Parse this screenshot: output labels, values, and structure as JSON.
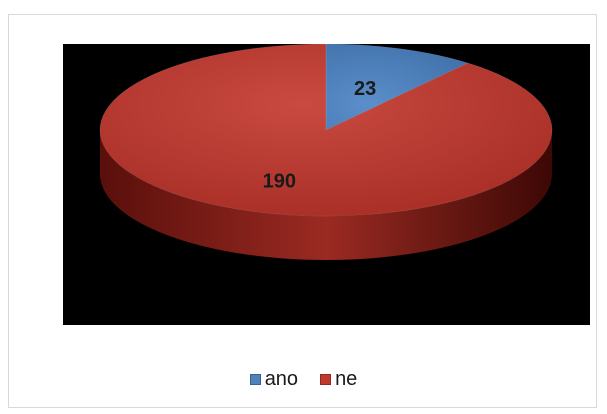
{
  "chart_data": {
    "type": "pie",
    "style": "3d",
    "title": "",
    "categories": [
      "ano",
      "ne"
    ],
    "values": [
      23,
      190
    ],
    "data_labels": [
      "23",
      "190"
    ],
    "colors": [
      "#4f81bd",
      "#c0392b"
    ],
    "side_colors": [
      "#2f5f8f",
      "#8b1a14"
    ],
    "plot_background": "#000000",
    "legend_position": "bottom"
  },
  "legend": {
    "items": [
      {
        "label": "ano",
        "color": "#4f81bd"
      },
      {
        "label": "ne",
        "color": "#c0392b"
      }
    ]
  }
}
